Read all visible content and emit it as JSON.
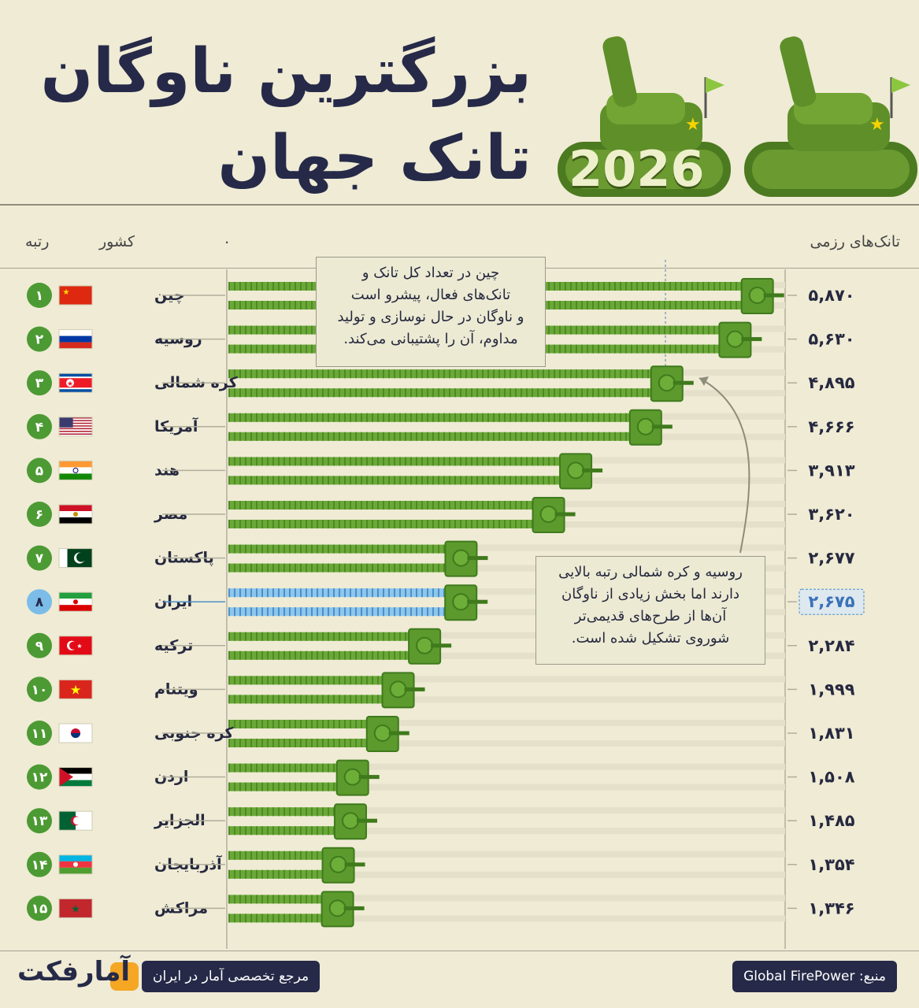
{
  "header": {
    "title_line1": "بزرگترین ناوگان",
    "title_line2": "تانک جهان",
    "year": "2026"
  },
  "columns": {
    "rank": "رتبه",
    "country": "کشور",
    "zero": "۰",
    "value": "تانک‌های رزمی"
  },
  "annotations": {
    "china": "چین در تعداد کل تانک و\nتانک‌های فعال، پیشرو است\nو ناوگان در حال نوسازی و تولید\nمداوم، آن را پشتیبانی می‌کند.",
    "russia_nk": "روسیه و کره شمالی رتبه بالایی\nدارند اما بخش زیادی از ناوگان\nآن‌ها از طرح‌های قدیمی‌تر\nشوروی تشکیل شده است."
  },
  "colors": {
    "bar_green": "#6aa838",
    "bar_green_dark": "#4f8a24",
    "highlight_blue": "#8ec6ec",
    "highlight_blue_dark": "#4b8fc9",
    "rank_green": "#4c9a33",
    "navy": "#262a48"
  },
  "chart_data": {
    "type": "bar",
    "orientation": "horizontal",
    "highlighted_country": "ایران",
    "categories": [
      "چین",
      "روسیه",
      "کره شمالی",
      "آمریکا",
      "هند",
      "مصر",
      "پاکستان",
      "ایران",
      "ترکیه",
      "ویتنام",
      "کره جنوبی",
      "اردن",
      "الجزایر",
      "آذربایجان",
      "مراکش"
    ],
    "ranks": [
      "۱",
      "۲",
      "۳",
      "۴",
      "۵",
      "۶",
      "۷",
      "۸",
      "۹",
      "۱۰",
      "۱۱",
      "۱۲",
      "۱۳",
      "۱۴",
      "۱۵"
    ],
    "value_labels": [
      "۵,۸۷۰",
      "۵,۶۳۰",
      "۴,۸۹۵",
      "۴,۶۶۶",
      "۳,۹۱۳",
      "۳,۶۲۰",
      "۲,۶۷۷",
      "۲,۶۷۵",
      "۲,۲۸۴",
      "۱,۹۹۹",
      "۱,۸۳۱",
      "۱,۵۰۸",
      "۱,۴۸۵",
      "۱,۳۵۴",
      "۱,۳۴۶"
    ],
    "values": [
      5870,
      5630,
      4895,
      4666,
      3913,
      3620,
      2677,
      2675,
      2284,
      1999,
      1831,
      1508,
      1485,
      1354,
      1346
    ],
    "flags": [
      "china",
      "russia",
      "north-korea",
      "usa",
      "india",
      "egypt",
      "pakistan",
      "iran",
      "turkey",
      "vietnam",
      "south-korea",
      "jordan",
      "algeria",
      "azerbaijan",
      "morocco"
    ],
    "xlim": [
      0,
      6000
    ]
  },
  "footer": {
    "source": "منبع: Global FirePower",
    "tagline": "مرجع تخصصی آمار در ایران",
    "logo": "آمارفکت"
  }
}
